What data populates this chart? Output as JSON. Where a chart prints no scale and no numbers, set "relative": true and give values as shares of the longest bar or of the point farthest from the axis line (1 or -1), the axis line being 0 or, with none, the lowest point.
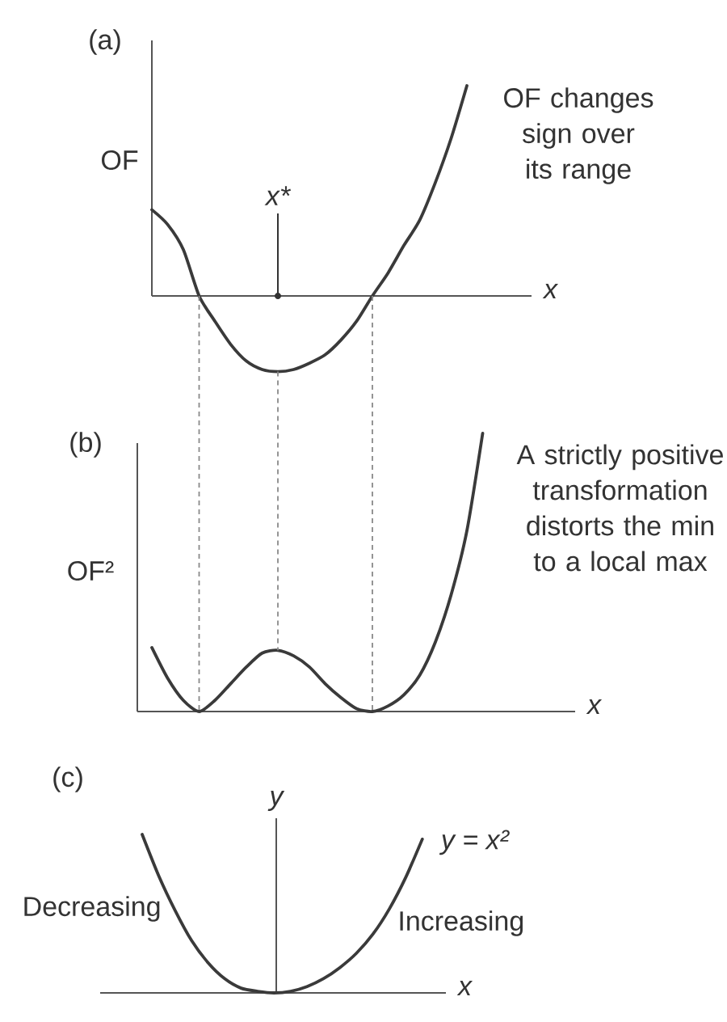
{
  "chart_data": [
    {
      "type": "line",
      "title": "(a)",
      "xlabel": "x",
      "ylabel": "OF",
      "relative": true,
      "marker": "none",
      "line_style": "solid",
      "categories": [
        null,
        null,
        null,
        null,
        null,
        null,
        null,
        null,
        null,
        null,
        null,
        null,
        null,
        null,
        null,
        null,
        null,
        null,
        null,
        null,
        null
      ],
      "series": [
        {
          "color": "#3a3a3a",
          "values": [
            0.41,
            0.34,
            0.22,
            0,
            -0.12,
            -0.23,
            -0.31,
            -0.35,
            -0.36,
            -0.35,
            -0.32,
            -0.28,
            -0.21,
            -0.12,
            0,
            0.11,
            0.24,
            0.36,
            0.54,
            0.75,
            1
          ]
        }
      ],
      "annotations": [
        "OF changes sign over its range",
        "x*"
      ]
    },
    {
      "type": "line",
      "title": "(b)",
      "xlabel": "x",
      "ylabel": "OF²",
      "relative": true,
      "marker": "none",
      "line_style": "solid",
      "categories": [
        null,
        null,
        null,
        null,
        null,
        null,
        null,
        null,
        null,
        null,
        null,
        null,
        null,
        null,
        null,
        null,
        null,
        null,
        null,
        null,
        null,
        null
      ],
      "series": [
        {
          "color": "#3a3a3a",
          "values": [
            0.23,
            0.12,
            0.04,
            0,
            0.04,
            0.1,
            0.16,
            0.21,
            0.22,
            0.2,
            0.16,
            0.1,
            0.05,
            0.01,
            0,
            0.02,
            0.06,
            0.13,
            0.25,
            0.42,
            0.65,
            1
          ]
        }
      ],
      "annotations": [
        "A strictly positive transformation distorts the min to a local max"
      ]
    },
    {
      "type": "line",
      "title": "(c)",
      "xlabel": "x",
      "ylabel": "y",
      "relative": true,
      "marker": "none",
      "line_style": "solid",
      "categories": [
        null,
        null,
        null,
        null,
        null,
        null,
        null,
        null,
        null,
        null,
        null,
        null,
        null,
        null,
        null,
        null,
        null,
        null
      ],
      "series": [
        {
          "name": "y = x²",
          "color": "#3a3a3a",
          "values": [
            1,
            0.74,
            0.52,
            0.33,
            0.19,
            0.09,
            0.03,
            0.01,
            0,
            0.01,
            0.04,
            0.09,
            0.16,
            0.25,
            0.37,
            0.53,
            0.73,
            0.97
          ]
        }
      ],
      "annotations": [
        "Decreasing",
        "Increasing"
      ]
    }
  ]
}
